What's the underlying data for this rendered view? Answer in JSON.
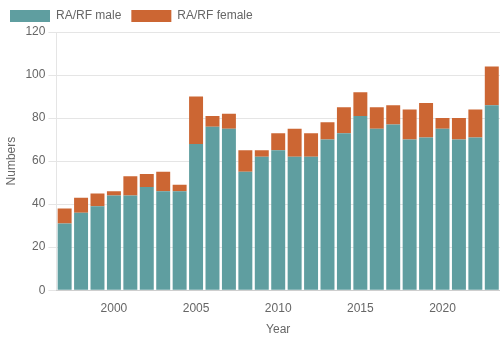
{
  "chart_data": {
    "type": "bar",
    "stacked": true,
    "categories": [
      null,
      null,
      null,
      "2000",
      null,
      null,
      null,
      null,
      "2005",
      null,
      null,
      null,
      null,
      "2010",
      null,
      null,
      null,
      null,
      "2015",
      null,
      null,
      null,
      null,
      "2020",
      null,
      null,
      null
    ],
    "series": [
      {
        "name": "RA/RF male",
        "color": "#5f9ea0",
        "values": [
          31,
          36,
          39,
          44,
          44,
          48,
          46,
          46,
          68,
          76,
          75,
          55,
          62,
          65,
          62,
          62,
          70,
          73,
          81,
          75,
          77,
          70,
          71,
          75,
          70,
          71,
          86
        ]
      },
      {
        "name": "RA/RF female",
        "color": "#cc6633",
        "values": [
          7,
          7,
          6,
          2,
          9,
          6,
          9,
          3,
          22,
          5,
          7,
          10,
          3,
          8,
          13,
          11,
          8,
          12,
          11,
          10,
          9,
          14,
          16,
          5,
          10,
          13,
          18
        ]
      }
    ],
    "xlabel": "Year",
    "ylabel": "Numbers",
    "ylim": [
      0,
      120
    ],
    "yticks": [
      0,
      20,
      40,
      60,
      80,
      100,
      120
    ],
    "grid": "y",
    "legend": "upper left"
  }
}
